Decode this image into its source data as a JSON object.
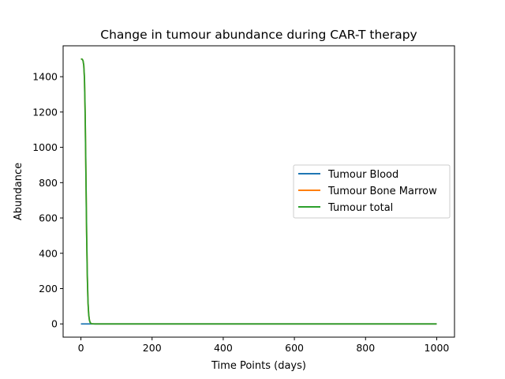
{
  "chart_data": {
    "type": "line",
    "title": "Change in tumour abundance during CAR-T therapy",
    "xlabel": "Time Points (days)",
    "ylabel": "Abundance",
    "xlim": [
      -50,
      1050
    ],
    "ylim": [
      -75,
      1575
    ],
    "xticks": [
      0,
      200,
      400,
      600,
      800,
      1000
    ],
    "yticks": [
      0,
      200,
      400,
      600,
      800,
      1000,
      1200,
      1400
    ],
    "grid": false,
    "legend_position": "center-right",
    "series": [
      {
        "name": "Tumour Blood",
        "color": "#1f77b4",
        "x": [
          0,
          1000
        ],
        "y": [
          0,
          0
        ]
      },
      {
        "name": "Tumour Bone Marrow",
        "color": "#ff7f0e",
        "x": [
          0,
          2,
          4,
          6,
          8,
          10,
          12,
          14,
          16,
          18,
          20,
          22,
          24,
          26,
          28,
          30,
          35,
          40,
          100,
          300,
          500,
          700,
          900,
          1000
        ],
        "y": [
          1500,
          1500,
          1498,
          1490,
          1465,
          1390,
          1180,
          860,
          520,
          270,
          120,
          50,
          20,
          8,
          3,
          1,
          0.3,
          0,
          0,
          0,
          0,
          0,
          0,
          0
        ]
      },
      {
        "name": "Tumour total",
        "color": "#2ca02c",
        "x": [
          0,
          2,
          4,
          6,
          8,
          10,
          12,
          14,
          16,
          18,
          20,
          22,
          24,
          26,
          28,
          30,
          35,
          40,
          100,
          300,
          500,
          700,
          900,
          1000
        ],
        "y": [
          1500,
          1500,
          1498,
          1490,
          1465,
          1390,
          1180,
          860,
          520,
          270,
          120,
          50,
          20,
          8,
          3,
          1,
          0.3,
          0,
          0,
          0,
          0,
          0,
          0,
          0
        ]
      }
    ]
  }
}
